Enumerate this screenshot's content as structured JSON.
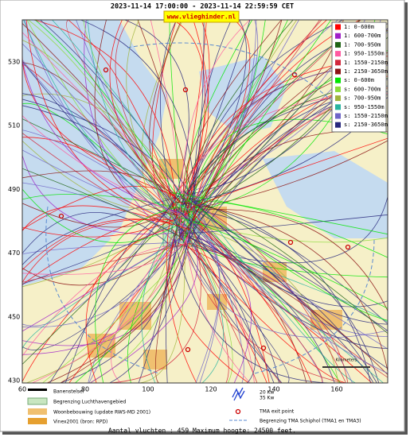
{
  "header": {
    "title": "2023-11-14 17:00:00 - 2023-11-14 22:59:59 CET",
    "website": "www.vlieghinder.nl"
  },
  "legend": [
    {
      "label": "1: 0-600m",
      "color": "#ff0000"
    },
    {
      "label": "1: 600-700m",
      "color": "#a020c8"
    },
    {
      "label": "1: 700-950m",
      "color": "#1e6414"
    },
    {
      "label": "1: 950-1550m",
      "color": "#ff5aa0"
    },
    {
      "label": "1: 1550-2150m",
      "color": "#d2283c"
    },
    {
      "label": "1: 2150-3650m",
      "color": "#8c1414"
    },
    {
      "label": "s: 0-600m",
      "color": "#00e600"
    },
    {
      "label": "s: 600-700m",
      "color": "#8cdc3c"
    },
    {
      "label": "s: 700-950m",
      "color": "#a0b43c"
    },
    {
      "label": "s: 950-1550m",
      "color": "#28b4a0"
    },
    {
      "label": "s: 1550-2150m",
      "color": "#6e64c8"
    },
    {
      "label": "s: 2150-3650m",
      "color": "#28287d"
    }
  ],
  "axes": {
    "y": [
      530,
      510,
      490,
      470,
      450,
      430
    ],
    "x": [
      60,
      80,
      100,
      120,
      140,
      160
    ]
  },
  "map_key": {
    "runways": "Banenstelsel",
    "airport_boundary": "Begrenzing Luchthavengebied",
    "housing": "Woonbebouwing (update RWS-MD 2001)",
    "vinex": "Vinex2001 (bron: RPD)",
    "noise_20": "20 Kw",
    "noise_35": "35 Kw",
    "tma_exit": "TMA exit point",
    "tma_boundary": "Begrenzing TMA Schiphol (TMA1 en TMA3)",
    "scale": "Kilometers"
  },
  "footer": "Aantal vluchten : 459 Maximum hoogte: 24500 feet."
}
